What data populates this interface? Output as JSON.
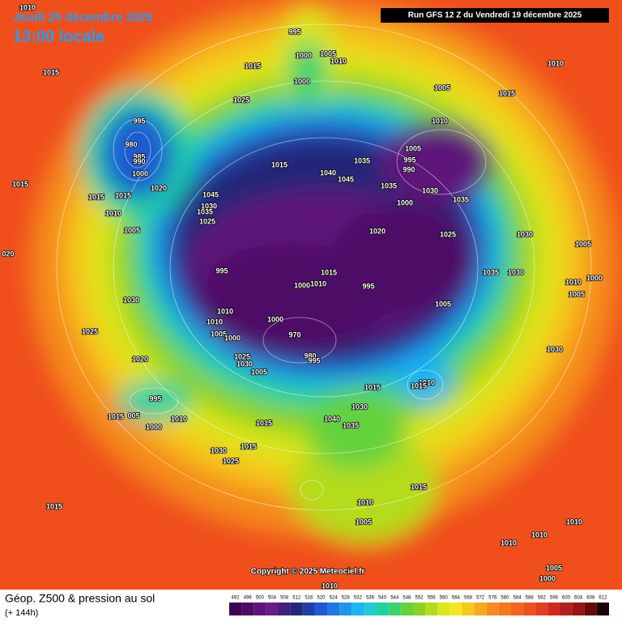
{
  "header": {
    "date": "Jeudi 25 décembre 2025",
    "time": "13:00 locale",
    "run": "Run GFS 12 Z du Vendredi 19 décembre 2025"
  },
  "copyright": "Copyright © 2025 Meteociel.fr",
  "footer": {
    "title": "Géop. Z500 & pression au sol",
    "subtitle": "(+ 144h)"
  },
  "legend": {
    "values": [
      492,
      496,
      500,
      504,
      508,
      512,
      516,
      520,
      524,
      528,
      532,
      536,
      540,
      544,
      548,
      552,
      556,
      560,
      564,
      568,
      572,
      576,
      580,
      584,
      588,
      592,
      596,
      600,
      604,
      608,
      612
    ],
    "colors": [
      "#3c0050",
      "#4e0b66",
      "#5e147a",
      "#6c1a8a",
      "#40207a",
      "#202878",
      "#2040a8",
      "#1e5ad0",
      "#1e78e8",
      "#1e96f0",
      "#1eb4f0",
      "#1ecdd2",
      "#1ed2a0",
      "#3cd26e",
      "#64d23c",
      "#8cd21e",
      "#b4dc1e",
      "#dce61e",
      "#f5e61e",
      "#f5c81e",
      "#f5aa1e",
      "#f58c1e",
      "#f5781e",
      "#f5641e",
      "#f0501e",
      "#e63c1e",
      "#d2281e",
      "#b41e1e",
      "#961414",
      "#640a0a",
      "#1e0000"
    ]
  },
  "isobars": [
    "1010",
    "1015",
    "995",
    "1000",
    "1005",
    "1010",
    "1015",
    "1000",
    "1025",
    "1010",
    "1005",
    "1015",
    "1010",
    "995",
    "980",
    "985",
    "990",
    "1000",
    "1020",
    "1015",
    "1015",
    "1010",
    "1015",
    "1045",
    "1030",
    "1035",
    "1025",
    "1015",
    "1040",
    "1045",
    "1035",
    "1005",
    "995",
    "990",
    "1035",
    "1000",
    "1030",
    "1035",
    "1020",
    "1025",
    "1030",
    "1005",
    "1005",
    "020",
    "995",
    "1015",
    "1000",
    "1010",
    "995",
    "1035",
    "1030",
    "1010",
    "1005",
    "1000",
    "1030",
    "1005",
    "1010",
    "1010",
    "1000",
    "1005",
    "1000",
    "970",
    "1025",
    "1025",
    "1030",
    "980",
    "995",
    "1005",
    "1020",
    "1030",
    "1010",
    "1015",
    "1015",
    "995",
    "1015",
    "005",
    "1010",
    "1000",
    "1040",
    "1035",
    "1030",
    "1015",
    "1015",
    "1030",
    "1025",
    "1015",
    "1010",
    "1005",
    "1015",
    "1010",
    "1010",
    "1010",
    "1005",
    "1000",
    "1010"
  ]
}
